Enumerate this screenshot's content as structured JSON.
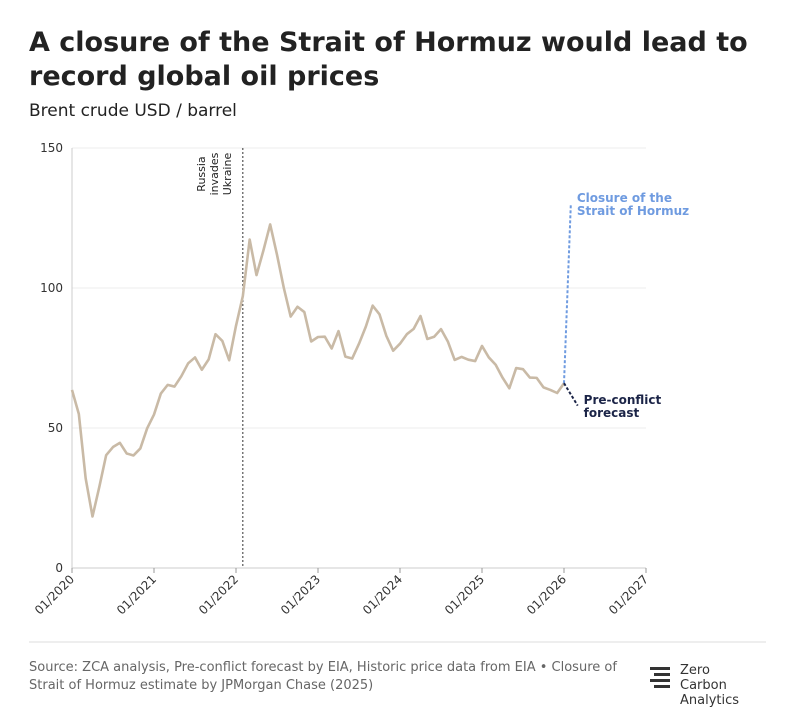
{
  "chart_data": {
    "type": "line",
    "title": "A closure of the Strait of Hormuz would lead to record global oil prices",
    "subtitle": "Brent crude USD / barrel",
    "xlim": [
      "2020-01",
      "2027-01"
    ],
    "xticks": [
      {
        "value": "2020-01",
        "label": "01/2020"
      },
      {
        "value": "2021-01",
        "label": "01/2021"
      },
      {
        "value": "2022-01",
        "label": "01/2022"
      },
      {
        "value": "2023-01",
        "label": "01/2023"
      },
      {
        "value": "2024-01",
        "label": "01/2024"
      },
      {
        "value": "2025-01",
        "label": "01/2025"
      },
      {
        "value": "2026-01",
        "label": "01/2026"
      },
      {
        "value": "2027-01",
        "label": "01/2027"
      }
    ],
    "ylim": [
      0,
      150
    ],
    "yticks": [
      0,
      50,
      100,
      150
    ],
    "grid": true,
    "annotations": [
      {
        "text": "Russia invades Ukraine",
        "x": "2022-02"
      }
    ],
    "series": [
      {
        "color": "#c9baa6",
        "dashed": false,
        "x": [
          "2020-01",
          "2020-02",
          "2020-03",
          "2020-04",
          "2020-05",
          "2020-06",
          "2020-07",
          "2020-08",
          "2020-09",
          "2020-10",
          "2020-11",
          "2020-12",
          "2021-01",
          "2021-02",
          "2021-03",
          "2021-04",
          "2021-05",
          "2021-06",
          "2021-07",
          "2021-08",
          "2021-09",
          "2021-10",
          "2021-11",
          "2021-12",
          "2022-01",
          "2022-02",
          "2022-03",
          "2022-04",
          "2022-05",
          "2022-06",
          "2022-07",
          "2022-08",
          "2022-09",
          "2022-10",
          "2022-11",
          "2022-12",
          "2023-01",
          "2023-02",
          "2023-03",
          "2023-04",
          "2023-05",
          "2023-06",
          "2023-07",
          "2023-08",
          "2023-09",
          "2023-10",
          "2023-11",
          "2023-12",
          "2024-01",
          "2024-02",
          "2024-03",
          "2024-04",
          "2024-05",
          "2024-06",
          "2024-07",
          "2024-08",
          "2024-09",
          "2024-10",
          "2024-11",
          "2024-12",
          "2025-01",
          "2025-02",
          "2025-03",
          "2025-04",
          "2025-05",
          "2025-06",
          "2025-07",
          "2025-08",
          "2025-09",
          "2025-10",
          "2025-11",
          "2025-12",
          "2026-01"
        ],
        "values": [
          63.6,
          55,
          32,
          18.4,
          29,
          40.3,
          43.2,
          44.7,
          40.9,
          40.2,
          42.7,
          49.9,
          54.8,
          62.3,
          65.4,
          64.8,
          68.5,
          73.1,
          75.2,
          70.8,
          74.5,
          83.5,
          81.1,
          74.2,
          86.5,
          97.1,
          117.3,
          104.6,
          113.3,
          122.7,
          111.9,
          100,
          89.8,
          93.3,
          91.4,
          80.9,
          82.5,
          82.6,
          78.4,
          84.6,
          75.5,
          74.8,
          80.1,
          86.2,
          93.7,
          90.6,
          82.9,
          77.6,
          80.1,
          83.5,
          85.4,
          90,
          81.8,
          82.6,
          85.3,
          80.9,
          74.3,
          75.4,
          74.4,
          73.9,
          79.3,
          75.2,
          72.6,
          68,
          64.2,
          71.4,
          71,
          68,
          67.9,
          64.5,
          63.6,
          62.5,
          66
        ]
      },
      {
        "name": "Closure of the Strait of Hormuz",
        "color": "#6f9be0",
        "dashed": true,
        "x": [
          "2026-01",
          "2026-02"
        ],
        "values": [
          66,
          130
        ]
      },
      {
        "name": "Pre-conflict forecast",
        "color": "#1b2447",
        "dashed": true,
        "x": [
          "2026-01",
          "2026-03"
        ],
        "values": [
          66,
          58
        ]
      }
    ]
  },
  "footer": {
    "source": "Source: ZCA analysis, Pre-conflict forecast by EIA, Historic price data from EIA • Closure of Strait of Hormuz estimate by JPMorgan Chase (2025)",
    "logo": "Zero Carbon Analytics"
  }
}
